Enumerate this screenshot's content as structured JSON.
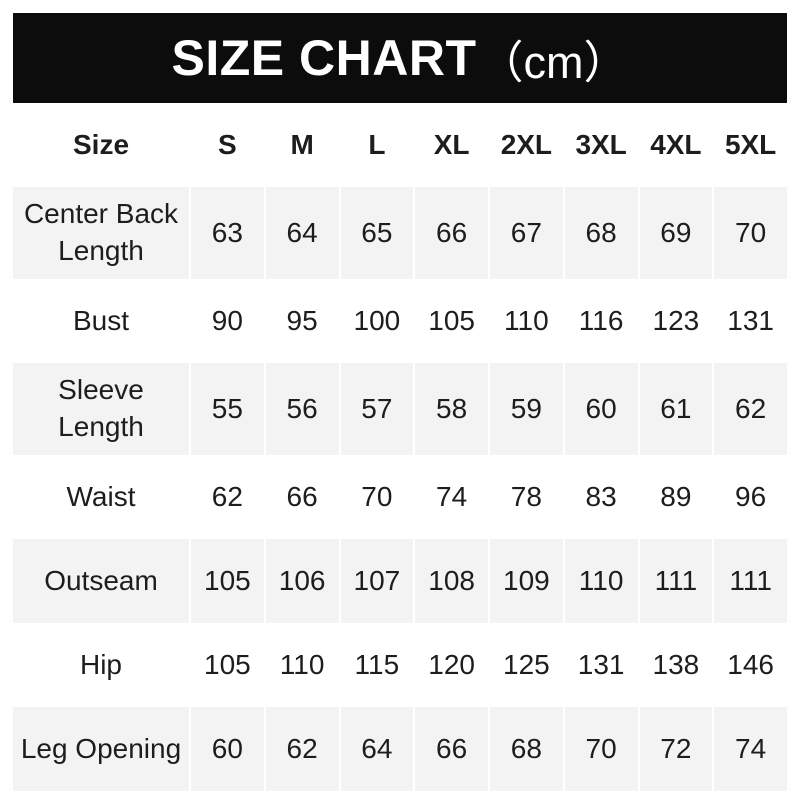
{
  "banner": {
    "title": "SIZE CHART",
    "unit": "（cm）",
    "background": "#0c0c0c",
    "text_color": "#ffffff"
  },
  "colors": {
    "shaded_row": "#f3f3f3",
    "text": "#1d1d1d",
    "page_background": "#ffffff"
  },
  "chart_data": {
    "type": "table",
    "title": "SIZE CHART",
    "unit_label": "（cm）",
    "corner_label": "Size",
    "columns": [
      "S",
      "M",
      "L",
      "XL",
      "2XL",
      "3XL",
      "4XL",
      "5XL"
    ],
    "rows": [
      {
        "label": "Center Back Length",
        "lines": [
          "Center Back",
          "Length"
        ],
        "values": [
          63,
          64,
          65,
          66,
          67,
          68,
          69,
          70
        ],
        "shaded": true
      },
      {
        "label": "Bust",
        "lines": [
          "Bust"
        ],
        "values": [
          90,
          95,
          100,
          105,
          110,
          116,
          123,
          131
        ],
        "shaded": false
      },
      {
        "label": "Sleeve Length",
        "lines": [
          "Sleeve",
          "Length"
        ],
        "values": [
          55,
          56,
          57,
          58,
          59,
          60,
          61,
          62
        ],
        "shaded": true
      },
      {
        "label": "Waist",
        "lines": [
          "Waist"
        ],
        "values": [
          62,
          66,
          70,
          74,
          78,
          83,
          89,
          96
        ],
        "shaded": false
      },
      {
        "label": "Outseam",
        "lines": [
          "Outseam"
        ],
        "values": [
          105,
          106,
          107,
          108,
          109,
          110,
          111,
          111
        ],
        "shaded": true
      },
      {
        "label": "Hip",
        "lines": [
          "Hip"
        ],
        "values": [
          105,
          110,
          115,
          120,
          125,
          131,
          138,
          146
        ],
        "shaded": false
      },
      {
        "label": "Leg Opening",
        "lines": [
          "Leg Opening"
        ],
        "values": [
          60,
          62,
          64,
          66,
          68,
          70,
          72,
          74
        ],
        "shaded": true
      }
    ]
  }
}
